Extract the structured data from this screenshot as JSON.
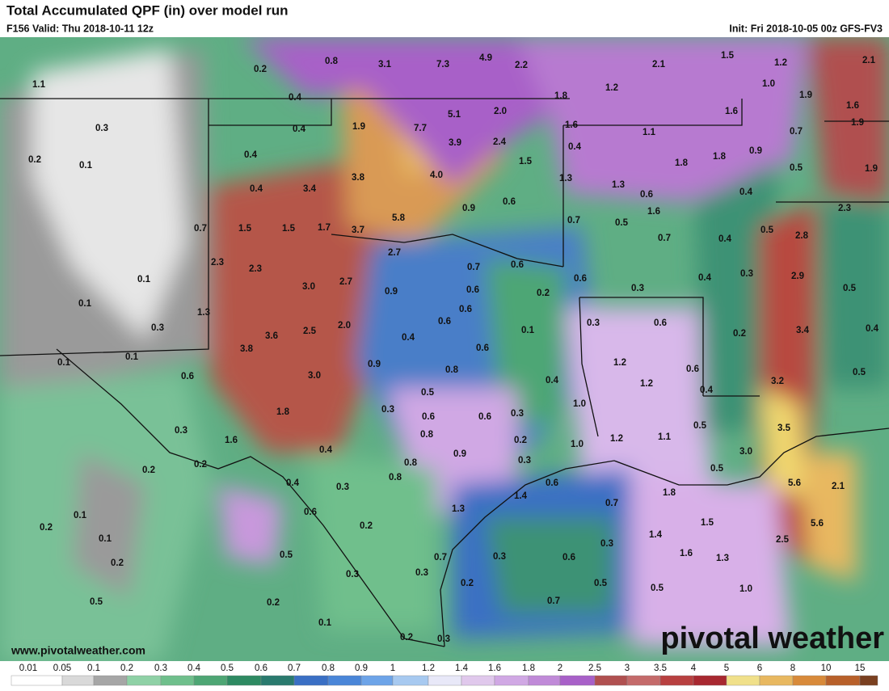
{
  "header": {
    "title": "Total Accumulated QPF (in) over model run",
    "valid": "F156 Valid: Thu 2018-10-11 12z",
    "init": "Init: Fri 2018-10-05 00z GFS-FV3"
  },
  "map": {
    "labels": [
      "0.2",
      "0.8",
      "3.1",
      "7.3",
      "4.9",
      "2.2",
      "2.1",
      "1.5",
      "1.2",
      "2.1",
      "1.1",
      "1.0",
      "1.2",
      "1.8",
      "1.9",
      "0.4",
      "1.6",
      "5.1",
      "2.0",
      "1.6",
      "0.3",
      "0.4",
      "1.9",
      "7.7",
      "1.6",
      "1.1",
      "0.7",
      "1.9",
      "0.2",
      "0.1",
      "0.4",
      "3.9",
      "2.4",
      "0.4",
      "0.9",
      "1.5",
      "1.8",
      "1.8",
      "0.5",
      "1.9",
      "0.4",
      "3.4",
      "3.8",
      "4.0",
      "1.3",
      "1.3",
      "0.6",
      "0.4",
      "0.6",
      "0.9",
      "5.8",
      "0.7",
      "0.5",
      "1.6",
      "2.3",
      "0.7",
      "1.5",
      "1.5",
      "1.7",
      "3.7",
      "0.7",
      "0.4",
      "0.5",
      "2.8",
      "2.7",
      "2.3",
      "2.3",
      "0.7",
      "0.6",
      "0.3",
      "2.9",
      "0.1",
      "3.0",
      "2.7",
      "0.6",
      "0.3",
      "0.4",
      "0.5",
      "0.1",
      "1.3",
      "0.9",
      "0.6",
      "0.2",
      "0.6",
      "0.3",
      "3.6",
      "2.5",
      "2.0",
      "0.6",
      "0.3",
      "0.6",
      "3.4",
      "0.4",
      "0.1",
      "0.2",
      "3.8",
      "0.4",
      "0.6",
      "0.1",
      "0.1",
      "0.9",
      "1.2",
      "0.8",
      "0.6",
      "0.5",
      "0.6",
      "3.0",
      "0.4",
      "1.2",
      "3.2",
      "0.5",
      "0.4",
      "1.0",
      "1.8",
      "0.3",
      "0.6",
      "0.6",
      "0.3",
      "0.5",
      "0.3",
      "1.6",
      "0.8",
      "0.2",
      "1.0",
      "1.2",
      "1.1",
      "3.5",
      "0.4",
      "0.9",
      "3.0",
      "0.2",
      "0.2",
      "0.8",
      "0.3",
      "0.5",
      "0.4",
      "0.3",
      "0.8",
      "0.6",
      "5.6",
      "2.1",
      "1.4",
      "1.8",
      "0.7",
      "0.6",
      "0.1",
      "1.3",
      "0.2",
      "0.2",
      "1.5",
      "5.6",
      "0.1",
      "1.4",
      "0.3",
      "2.5",
      "0.5",
      "0.7",
      "0.3",
      "0.6",
      "1.6",
      "1.3",
      "0.2",
      "0.3",
      "0.3",
      "0.2",
      "0.5",
      "0.5",
      "1.0",
      "0.5",
      "0.2",
      "0.7",
      "0.1",
      "0.2",
      "0.3"
    ]
  },
  "colorbar": {
    "labels": [
      "0.01",
      "0.05",
      "0.1",
      "0.2",
      "0.3",
      "0.4",
      "0.5",
      "0.6",
      "0.7",
      "0.8",
      "0.9",
      "1",
      "1.2",
      "1.4",
      "1.6",
      "1.8",
      "2",
      "2.5",
      "3",
      "3.5",
      "4",
      "5",
      "6",
      "8",
      "10",
      "15"
    ],
    "colors": [
      "#ffffff",
      "#d9d9d9",
      "#a6a6a6",
      "#8fd1a6",
      "#6fbf8c",
      "#4ea674",
      "#2e8a62",
      "#2a7a6e",
      "#3a6fc4",
      "#4a86d8",
      "#6da4e8",
      "#a7c9f0",
      "#e8e8f8",
      "#e0c8ec",
      "#d0a8e4",
      "#c08ad8",
      "#a860c8",
      "#b05050",
      "#c46a6a",
      "#b84040",
      "#a82830",
      "#f0e08a",
      "#e8b860",
      "#d88a3a",
      "#b8602a",
      "#7a4020"
    ]
  },
  "footer": {
    "website": "www.pivotalweather.com",
    "logo": "pivotal weather"
  }
}
